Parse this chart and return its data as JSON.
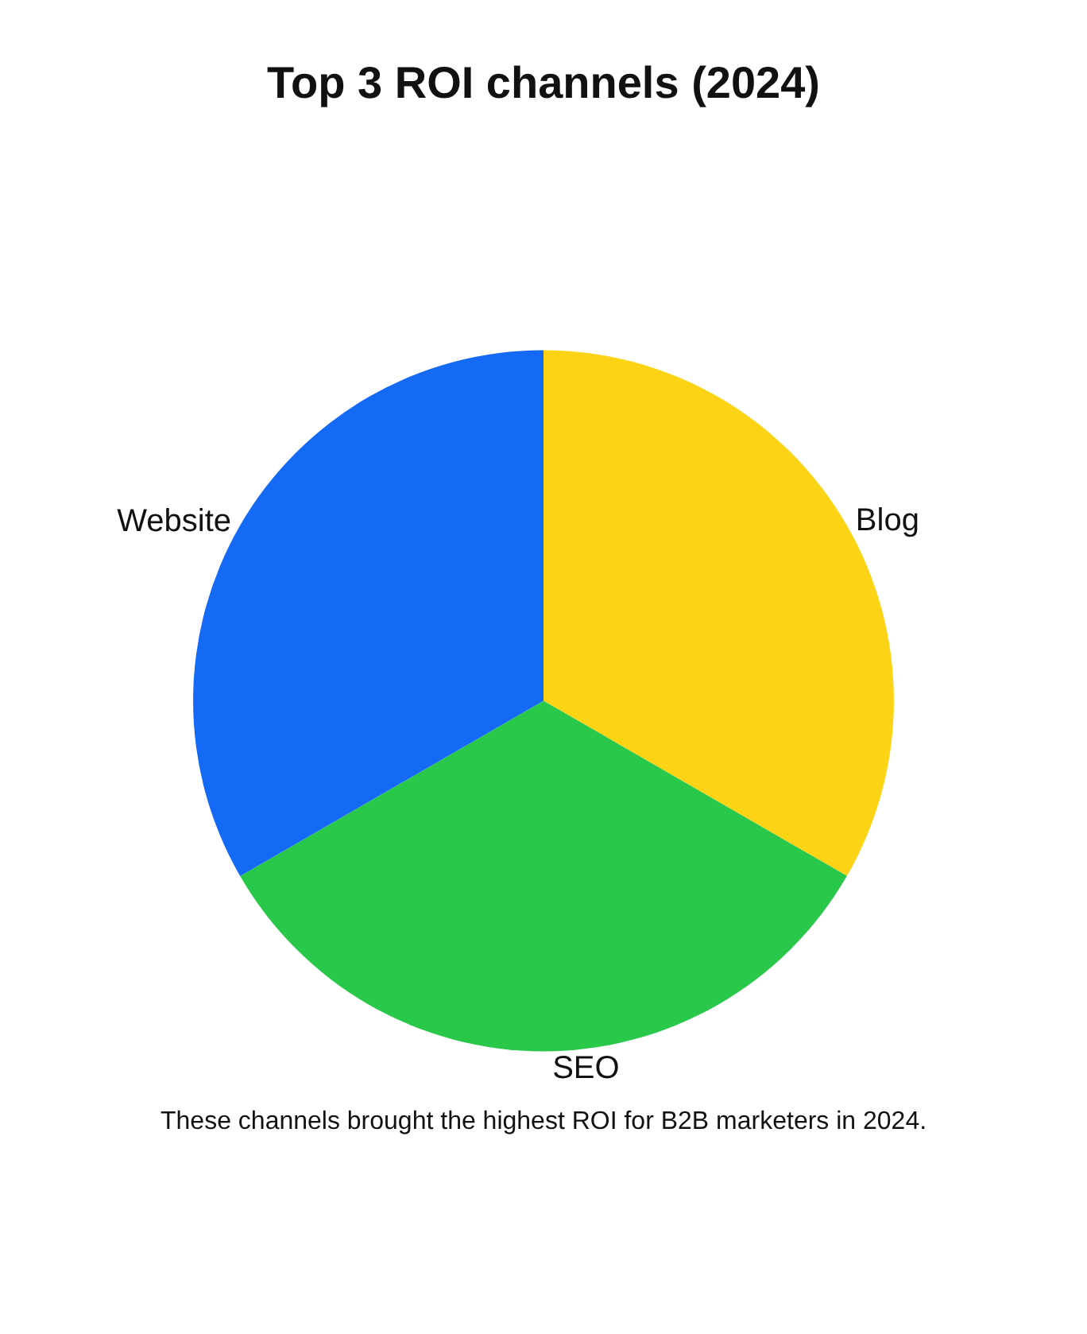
{
  "chart_data": {
    "type": "pie",
    "title": "Top 3 ROI channels (2024)",
    "categories": [
      "Blog",
      "SEO",
      "Website"
    ],
    "values": [
      33.33,
      33.33,
      33.34
    ],
    "colors": [
      "#fdd415",
      "#2ac84a",
      "#1469f5"
    ],
    "legend": false,
    "annotations": [
      "These channels brought the highest ROI for B2B marketers in 2024."
    ]
  }
}
